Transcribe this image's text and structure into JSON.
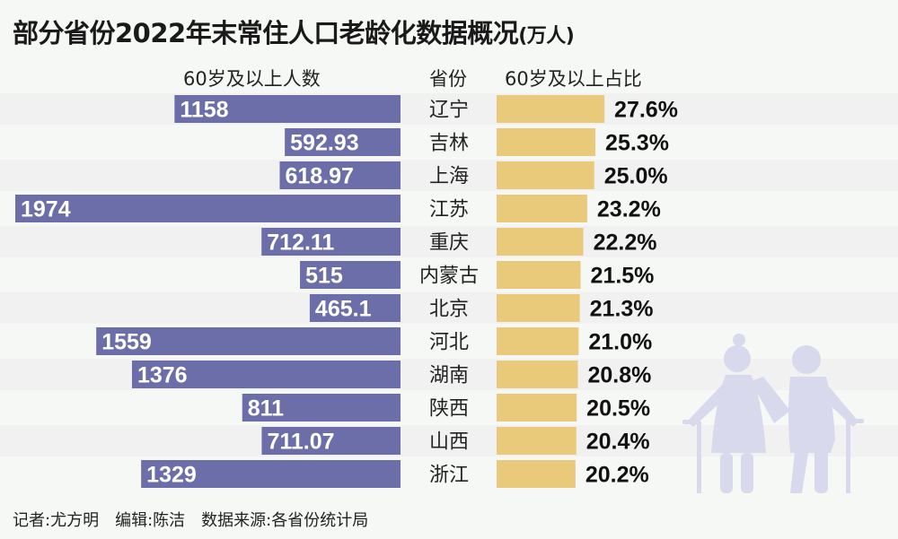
{
  "title": "部分省份2022年末常住人口老龄化数据概况",
  "unit": "(万人)",
  "headers": {
    "left": "60岁及以上人数",
    "middle": "省份",
    "right": "60岁及以上占比"
  },
  "colors": {
    "left_bar": "#6b6ea8",
    "right_bar": "#e9ca7b",
    "figure": "#d9d9ee",
    "stripe": "#ececec"
  },
  "icon": "elderly-couple-with-canes-icon",
  "chart_data": {
    "type": "bar",
    "categories": [
      "辽宁",
      "吉林",
      "上海",
      "江苏",
      "重庆",
      "内蒙古",
      "北京",
      "河北",
      "湖南",
      "陕西",
      "山西",
      "浙江"
    ],
    "series": [
      {
        "name": "60岁及以上人数",
        "values": [
          1158,
          592.93,
          618.97,
          1974,
          712.11,
          515,
          465.1,
          1559,
          1376,
          811,
          711.07,
          1329
        ],
        "labels": [
          "1158",
          "592.93",
          "618.97",
          "1974",
          "712.11",
          "515",
          "465.1",
          "1559",
          "1376",
          "811",
          "711.07",
          "1329"
        ]
      },
      {
        "name": "60岁及以上占比",
        "values": [
          27.6,
          25.3,
          25.0,
          23.2,
          22.2,
          21.5,
          21.3,
          21.0,
          20.8,
          20.5,
          20.4,
          20.2
        ],
        "labels": [
          "27.6%",
          "25.3%",
          "25.0%",
          "23.2%",
          "22.2%",
          "21.5%",
          "21.3%",
          "21.0%",
          "20.8%",
          "20.5%",
          "20.4%",
          "20.2%"
        ]
      }
    ],
    "orientation": "horizontal, butterfly"
  },
  "footer": "记者:尤方明　编辑:陈洁　数据来源:各省份统计局"
}
